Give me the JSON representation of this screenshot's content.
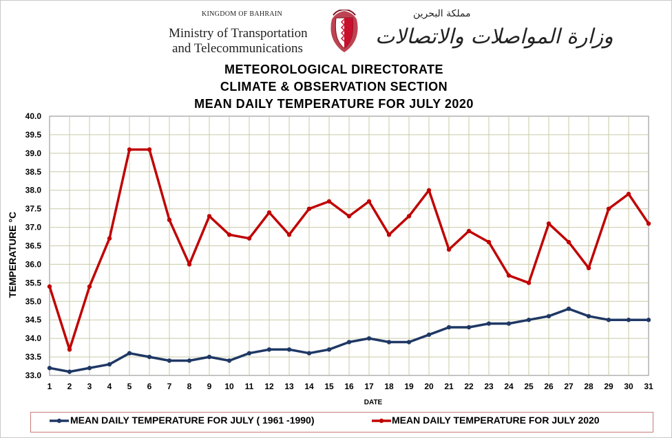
{
  "header": {
    "kingdom": "KINGDOM OF BAHRAIN",
    "ministry_line1": "Ministry of Transportation",
    "ministry_line2": "and Telecommunications",
    "arabic_kingdom": "مملكة البحرين",
    "arabic_ministry": "وزارة المواصلات والاتصالات"
  },
  "title_lines": [
    "METEOROLOGICAL DIRECTORATE",
    "CLIMATE & OBSERVATION SECTION",
    "MEAN DAILY TEMPERATURE FOR JULY 2020"
  ],
  "colors": {
    "series_normal": "#1f3864",
    "series_2020": "#c00000",
    "grid": "#c9c9a6",
    "emblem_red": "#c8102e"
  },
  "chart_data": {
    "type": "line",
    "title": "MEAN DAILY TEMPERATURE FOR JULY 2020",
    "xlabel": "DATE",
    "ylabel": "TEMPERATURE °C",
    "x": [
      1,
      2,
      3,
      4,
      5,
      6,
      7,
      8,
      9,
      10,
      11,
      12,
      13,
      14,
      15,
      16,
      17,
      18,
      19,
      20,
      21,
      22,
      23,
      24,
      25,
      26,
      27,
      28,
      29,
      30,
      31
    ],
    "ylim": [
      33.0,
      40.0
    ],
    "yticks": [
      "33.0",
      "33.5",
      "34.0",
      "34.5",
      "35.0",
      "35.5",
      "36.0",
      "36.5",
      "37.0",
      "37.5",
      "38.0",
      "38.5",
      "39.0",
      "39.5",
      "40.0"
    ],
    "grid": true,
    "legend_position": "bottom",
    "series": [
      {
        "name": "MEAN DAILY TEMPERATURE FOR JULY ( 1961 -1990)",
        "color": "#1f3864",
        "values": [
          33.2,
          33.1,
          33.2,
          33.3,
          33.6,
          33.5,
          33.4,
          33.4,
          33.5,
          33.4,
          33.6,
          33.7,
          33.7,
          33.6,
          33.7,
          33.9,
          34.0,
          33.9,
          33.9,
          34.1,
          34.3,
          34.3,
          34.4,
          34.4,
          34.5,
          34.6,
          34.8,
          34.6,
          34.5,
          34.5,
          34.5
        ]
      },
      {
        "name": "MEAN DAILY TEMPERATURE FOR JULY 2020",
        "color": "#c00000",
        "values": [
          35.4,
          33.7,
          35.4,
          36.7,
          39.1,
          39.1,
          37.2,
          36.0,
          37.3,
          36.8,
          36.7,
          37.4,
          36.8,
          37.5,
          37.7,
          37.3,
          37.7,
          36.8,
          37.3,
          38.0,
          36.4,
          36.9,
          36.6,
          35.7,
          35.5,
          37.1,
          36.6,
          35.9,
          37.5,
          37.9,
          37.1
        ]
      }
    ]
  }
}
